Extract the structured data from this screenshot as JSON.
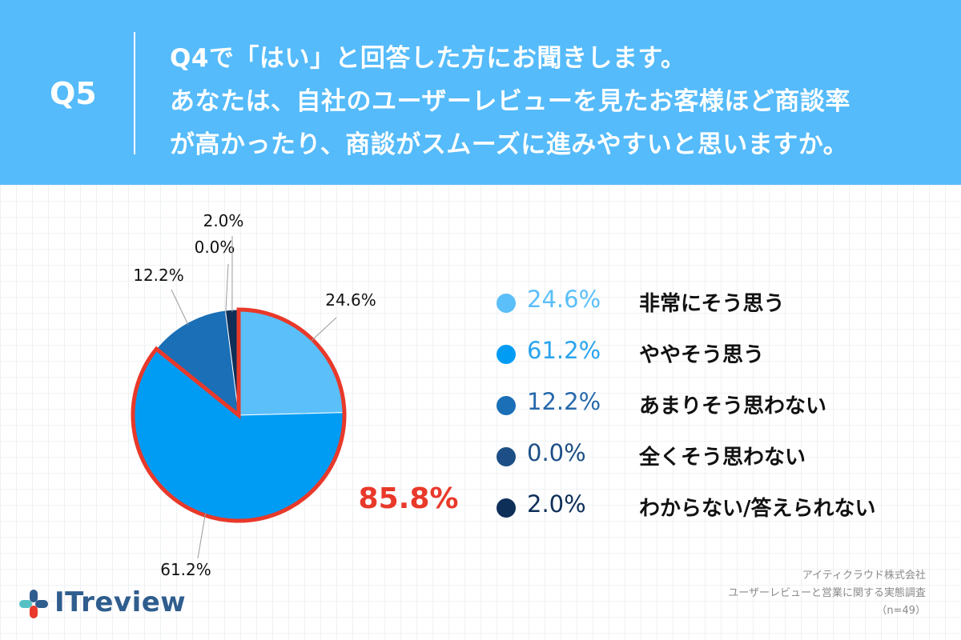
{
  "header": {
    "question_number": "Q5",
    "question_lines": [
      "Q4で「はい」と回答した方にお聞きします。",
      "あなたは、自社のユーザーレビューを見たお客様ほど商談率",
      "が高かったり、商談がスムーズに進みやすいと思いますか。"
    ]
  },
  "chart_data": {
    "type": "pie",
    "slices": [
      {
        "label": "非常にそう思う",
        "value": 24.6,
        "display": "24.6%",
        "color": "#5BBFF9"
      },
      {
        "label": "ややそう思う",
        "value": 61.2,
        "display": "61.2%",
        "color": "#009CF4"
      },
      {
        "label": "あまりそう思わない",
        "value": 12.2,
        "display": "12.2%",
        "color": "#1A6FB7"
      },
      {
        "label": "全くそう思わない",
        "value": 0.0,
        "display": "0.0%",
        "color": "#1D4F86"
      },
      {
        "label": "わからない/答えられない",
        "value": 2.0,
        "display": "2.0%",
        "color": "#0E2F58"
      }
    ],
    "highlight": {
      "label": "85.8%",
      "color": "#E8392A",
      "slices": [
        0,
        1
      ]
    },
    "legend_placement": "right"
  },
  "legend_pct_colors": [
    "#5BBFF9",
    "#2AA3EE",
    "#2769AC",
    "#1D4F86",
    "#0E2F58"
  ],
  "source": {
    "company": "アイティクラウド株式会社",
    "survey": "ユーザーレビューと営業に関する実態調査",
    "sample": "（n=49）"
  },
  "logo": {
    "text": "ITreview",
    "text_color": "#2F5D8E",
    "mark_colors": [
      "#2F5D8E",
      "#55C1C4",
      "#E8392A"
    ]
  }
}
